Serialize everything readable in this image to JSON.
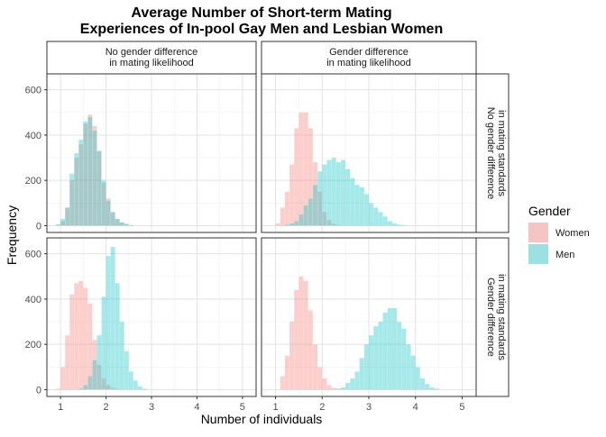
{
  "chart_data": {
    "type": "bar",
    "title_lines": [
      "Average Number of Short-term Mating",
      "Experiences of In-pool Gay Men and Lesbian Women"
    ],
    "xlabel": "Number of individuals",
    "ylabel": "Frequency",
    "col_strips": [
      [
        "No gender difference",
        "in mating likelihood"
      ],
      [
        "Gender difference",
        "in mating likelihood"
      ]
    ],
    "row_strips": [
      [
        "No gender difference",
        "in mating standards"
      ],
      [
        "Gender difference",
        "in mating standards"
      ]
    ],
    "xlim": [
      0.7,
      5.3
    ],
    "ylim": [
      -30,
      670
    ],
    "x_ticks": [
      1,
      2,
      3,
      4,
      5
    ],
    "y_ticks": [
      0,
      200,
      400,
      600
    ],
    "bin_width": 0.1,
    "grid": true,
    "legend": {
      "title": "Gender",
      "position": "right",
      "items": [
        {
          "label": "Women",
          "color": "#F8766D"
        },
        {
          "label": "Men",
          "color": "#00BFC4"
        }
      ]
    },
    "panels": [
      {
        "row": 0,
        "col": 0,
        "women": {
          "start": 0.9,
          "values": [
            5,
            20,
            80,
            200,
            300,
            360,
            450,
            490,
            440,
            330,
            190,
            120,
            60,
            30,
            15,
            8,
            3
          ]
        },
        "men": {
          "start": 0.9,
          "values": [
            6,
            30,
            80,
            230,
            320,
            380,
            460,
            480,
            420,
            330,
            200,
            110,
            60,
            30,
            15,
            8,
            3
          ]
        }
      },
      {
        "row": 0,
        "col": 1,
        "women": {
          "start": 1.0,
          "values": [
            10,
            80,
            150,
            270,
            430,
            500,
            500,
            430,
            280,
            150,
            60,
            25,
            8,
            3
          ]
        },
        "men": {
          "start": 1.2,
          "values": [
            5,
            10,
            20,
            50,
            90,
            120,
            180,
            240,
            270,
            290,
            300,
            280,
            290,
            250,
            210,
            180,
            170,
            140,
            100,
            80,
            60,
            40,
            20,
            10,
            5,
            3
          ]
        }
      },
      {
        "row": 1,
        "col": 0,
        "women": {
          "start": 0.9,
          "values": [
            5,
            100,
            240,
            420,
            470,
            480,
            450,
            380,
            220,
            110,
            50,
            20,
            8,
            3
          ]
        },
        "men": {
          "start": 1.4,
          "values": [
            5,
            20,
            60,
            130,
            240,
            410,
            590,
            630,
            470,
            300,
            170,
            80,
            40,
            15,
            5
          ]
        }
      },
      {
        "row": 1,
        "col": 1,
        "women": {
          "start": 1.1,
          "values": [
            60,
            150,
            300,
            440,
            500,
            480,
            350,
            200,
            100,
            50,
            20,
            8,
            3
          ]
        },
        "men": {
          "start": 2.3,
          "values": [
            5,
            10,
            30,
            50,
            80,
            140,
            200,
            240,
            280,
            300,
            340,
            360,
            360,
            300,
            270,
            200,
            150,
            100,
            50,
            25,
            10,
            5
          ]
        }
      }
    ]
  }
}
